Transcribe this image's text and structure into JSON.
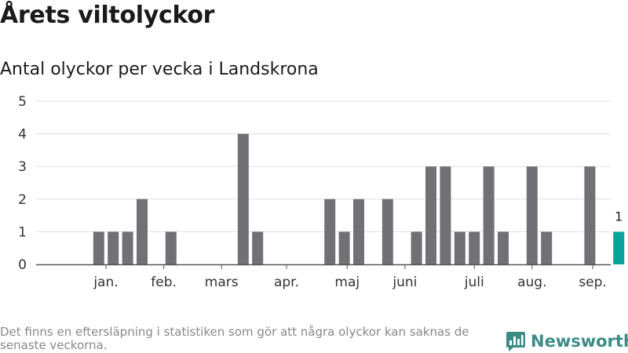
{
  "header": {
    "title": "Årets viltolyckor",
    "subtitle": "Antal olyckor per vecka i Landskrona"
  },
  "footnote": "Det finns en eftersläpning i statistiken som gör att några olyckor kan saknas de senaste veckorna.",
  "brand": {
    "name": "Newsworthy",
    "icon": "bar-chart-logo-icon",
    "color": "#3c8c86"
  },
  "colors": {
    "bar": "#717074",
    "highlight": "#0aa39c",
    "grid": "#e0e0e0",
    "axis": "#555555"
  },
  "chart_data": {
    "type": "bar",
    "title": "Antal olyckor per vecka i Landskrona",
    "ylim": [
      0,
      5
    ],
    "yticks": [
      0,
      1,
      2,
      3,
      4,
      5
    ],
    "grid": true,
    "x": [
      1,
      2,
      3,
      4,
      5,
      6,
      7,
      8,
      9,
      10,
      11,
      12,
      13,
      14,
      15,
      16,
      17,
      18,
      19,
      20,
      21,
      22,
      23,
      24,
      25,
      26,
      27,
      28,
      29,
      30,
      31,
      32,
      33,
      34,
      35,
      36,
      37,
      38
    ],
    "values": [
      0,
      0,
      1,
      1,
      1,
      2,
      0,
      1,
      0,
      0,
      0,
      0,
      4,
      1,
      0,
      0,
      0,
      0,
      2,
      1,
      2,
      0,
      2,
      0,
      1,
      3,
      3,
      1,
      1,
      3,
      1,
      0,
      3,
      1,
      0,
      0,
      3,
      0
    ],
    "latest": {
      "x": 39,
      "value": 1,
      "label": "1"
    },
    "month_labels": [
      {
        "label": "jan.",
        "x": 3.5
      },
      {
        "label": "feb.",
        "x": 7.5
      },
      {
        "label": "mars",
        "x": 11.5
      },
      {
        "label": "apr.",
        "x": 16
      },
      {
        "label": "maj",
        "x": 20.2
      },
      {
        "label": "juni",
        "x": 24.2
      },
      {
        "label": "juli",
        "x": 29
      },
      {
        "label": "aug.",
        "x": 33
      },
      {
        "label": "sep.",
        "x": 37.2
      }
    ]
  }
}
